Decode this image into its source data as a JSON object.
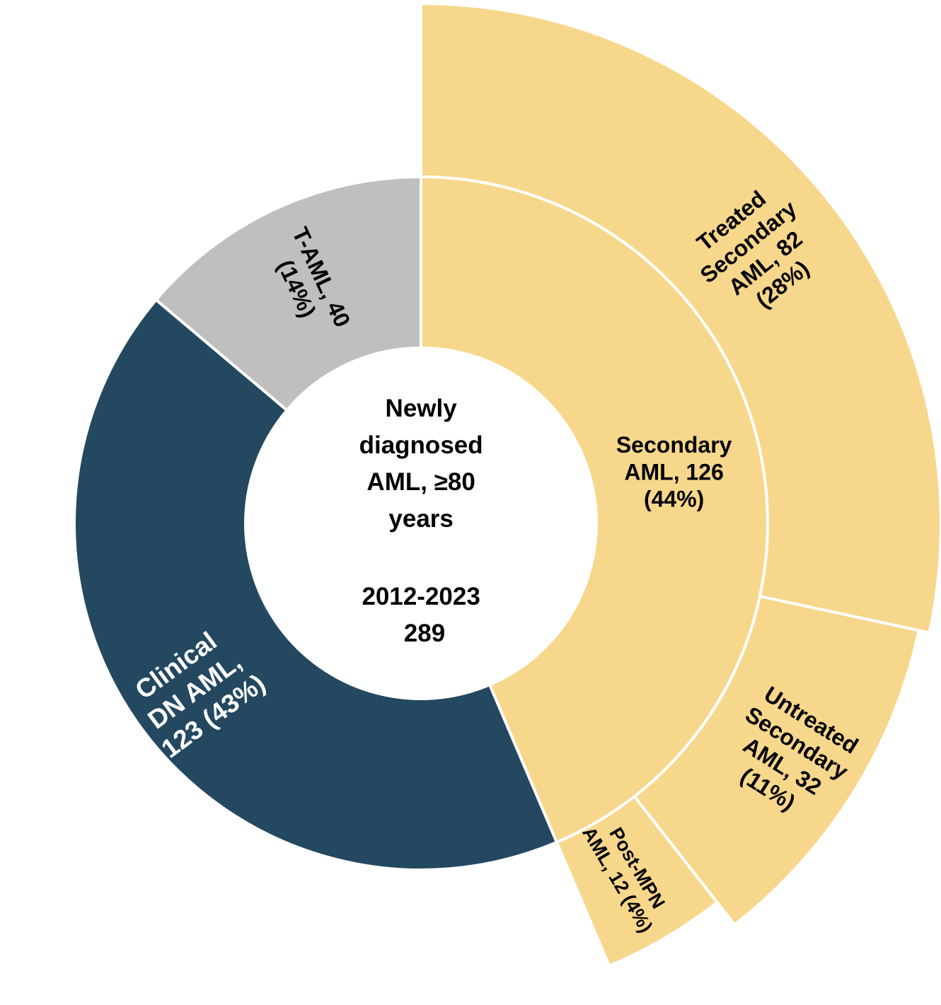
{
  "chart_data": {
    "type": "sunburst",
    "center": {
      "lines": [
        "Newly",
        "diagnosed",
        "AML, ≥80",
        "years",
        "",
        "2012-2023",
        "289"
      ]
    },
    "total": 289,
    "inner_ring": [
      {
        "name": "Secondary AML",
        "value": 126,
        "label_lines": [
          "Secondary",
          "AML, 126",
          "(44%)"
        ],
        "color": "#F7D78B"
      },
      {
        "name": "Clinical DN AML",
        "value": 123,
        "label_lines": [
          "Clinical",
          "DN AML,",
          "123 (43%)"
        ],
        "color": "#234860"
      },
      {
        "name": "T-AML",
        "value": 40,
        "label_lines": [
          "T-AML, 40",
          "(14%)"
        ],
        "color": "#BFBFBF"
      }
    ],
    "outer_ring": [
      {
        "name": "Treated Secondary AML",
        "value": 82,
        "parent": "Secondary AML",
        "label_lines": [
          "Treated",
          "Secondary",
          "AML, 82",
          "(28%)"
        ],
        "color": "#F7D78B"
      },
      {
        "name": "Untreated Secondary AML",
        "value": 32,
        "parent": "Secondary AML",
        "label_lines": [
          "Untreated",
          "Secondary",
          "AML, 32",
          "(11%)"
        ],
        "color": "#F7D78B"
      },
      {
        "name": "Post-MPN AML",
        "value": 12,
        "parent": "Secondary AML",
        "label_lines": [
          "Post-MPN",
          "AML, 12 (4%)"
        ],
        "color": "#F7D78B"
      }
    ]
  }
}
